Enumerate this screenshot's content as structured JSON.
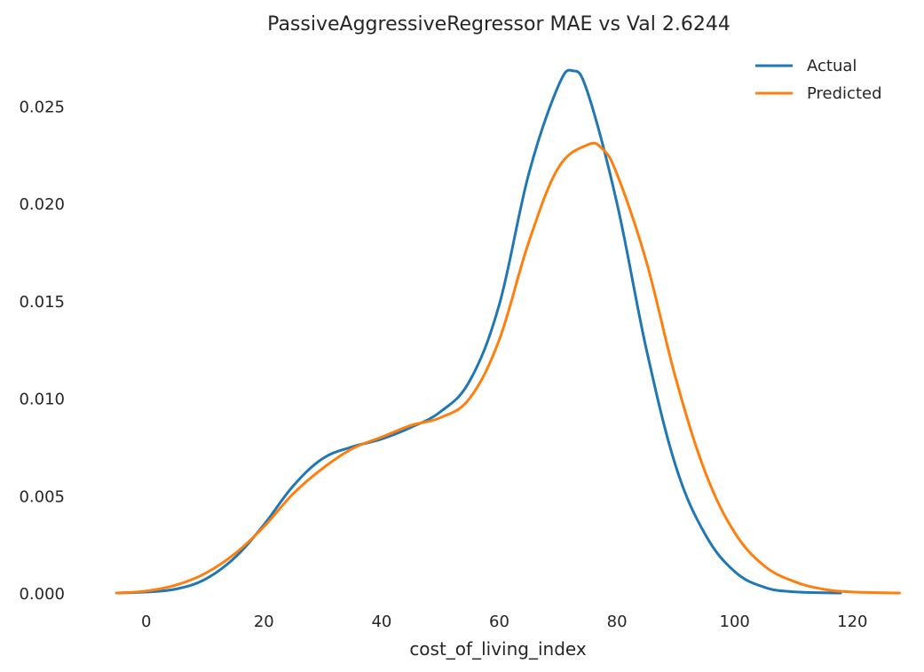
{
  "chart_data": {
    "type": "line",
    "title": "PassiveAggressiveRegressor MAE vs Val 2.6244",
    "xlabel": "cost_of_living_index",
    "ylabel": "",
    "xlim": [
      -9,
      129
    ],
    "ylim": [
      0,
      0.0277
    ],
    "xticks": [
      0,
      20,
      40,
      60,
      80,
      100,
      120
    ],
    "yticks": [
      0,
      0.005,
      0.01,
      0.015,
      0.02,
      0.025
    ],
    "xtick_labels": [
      "0",
      "20",
      "40",
      "60",
      "80",
      "100",
      "120"
    ],
    "ytick_labels": [
      "0.000",
      "0.005",
      "0.010",
      "0.015",
      "0.020",
      "0.025"
    ],
    "grid": false,
    "legend_position": "top-right",
    "series": [
      {
        "name": "Actual",
        "color": "#1f77b4",
        "points": [
          [
            -5,
            0.0
          ],
          [
            0,
            5e-05
          ],
          [
            5,
            0.0002
          ],
          [
            10,
            0.0007
          ],
          [
            15,
            0.0018
          ],
          [
            20,
            0.0035
          ],
          [
            25,
            0.0055
          ],
          [
            30,
            0.0069
          ],
          [
            35,
            0.0075
          ],
          [
            40,
            0.0079
          ],
          [
            45,
            0.0085
          ],
          [
            50,
            0.0093
          ],
          [
            55,
            0.0109
          ],
          [
            60,
            0.0148
          ],
          [
            65,
            0.0215
          ],
          [
            70,
            0.026
          ],
          [
            72.5,
            0.0268
          ],
          [
            75,
            0.0257
          ],
          [
            80,
            0.02
          ],
          [
            85,
            0.0125
          ],
          [
            90,
            0.0065
          ],
          [
            95,
            0.003
          ],
          [
            100,
            0.0011
          ],
          [
            105,
            0.0003
          ],
          [
            110,
            6e-05
          ],
          [
            118,
            0.0
          ]
        ]
      },
      {
        "name": "Predicted",
        "color": "#ff7f0e",
        "points": [
          [
            -5,
            0.0
          ],
          [
            0,
            0.0001
          ],
          [
            5,
            0.0004
          ],
          [
            10,
            0.001
          ],
          [
            15,
            0.002
          ],
          [
            20,
            0.0034
          ],
          [
            25,
            0.0051
          ],
          [
            30,
            0.0064
          ],
          [
            35,
            0.0074
          ],
          [
            40,
            0.008
          ],
          [
            45,
            0.0086
          ],
          [
            50,
            0.009
          ],
          [
            55,
            0.01
          ],
          [
            60,
            0.013
          ],
          [
            65,
            0.018
          ],
          [
            70,
            0.0218
          ],
          [
            75,
            0.023
          ],
          [
            77.5,
            0.0228
          ],
          [
            80,
            0.0215
          ],
          [
            85,
            0.017
          ],
          [
            90,
            0.011
          ],
          [
            95,
            0.0062
          ],
          [
            100,
            0.0031
          ],
          [
            105,
            0.0014
          ],
          [
            110,
            0.0006
          ],
          [
            115,
            0.0002
          ],
          [
            120,
            5e-05
          ],
          [
            128,
            0.0
          ]
        ]
      }
    ]
  }
}
